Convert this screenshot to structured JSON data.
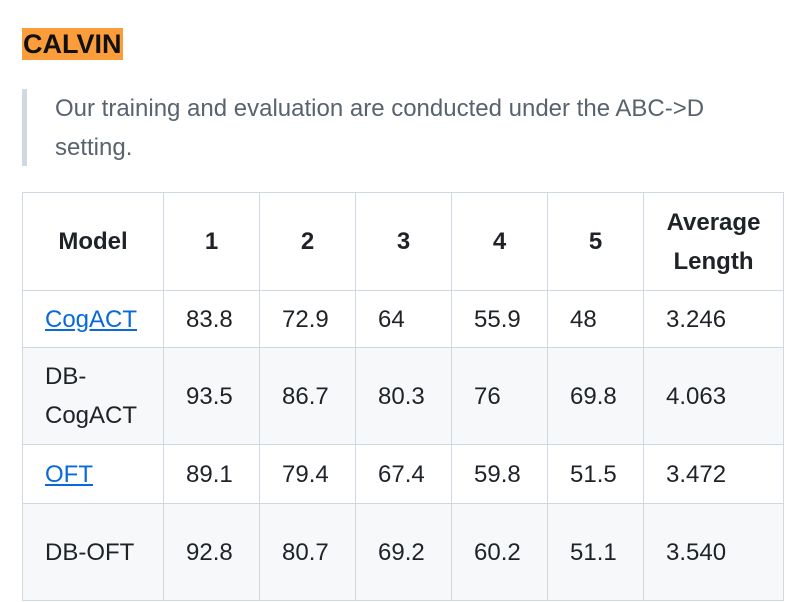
{
  "heading": "CALVIN",
  "note": "Our training and evaluation are conducted under the ABC->D setting.",
  "table": {
    "headers": [
      "Model",
      "1",
      "2",
      "3",
      "4",
      "5",
      "Average Length"
    ],
    "rows": [
      {
        "model": "CogACT",
        "link": true,
        "values": [
          "83.8",
          "72.9",
          "64",
          "55.9",
          "48",
          "3.246"
        ]
      },
      {
        "model": "DB-CogACT",
        "link": false,
        "values": [
          "93.5",
          "86.7",
          "80.3",
          "76",
          "69.8",
          "4.063"
        ]
      },
      {
        "model": "OFT",
        "link": true,
        "values": [
          "89.1",
          "79.4",
          "67.4",
          "59.8",
          "51.5",
          "3.472"
        ]
      },
      {
        "model": "DB-OFT",
        "link": false,
        "values": [
          "92.8",
          "80.7",
          "69.2",
          "60.2",
          "51.1",
          "3.540"
        ]
      }
    ]
  },
  "colors": {
    "highlight": "#fb9d3a",
    "link": "#0969da",
    "border": "#d1d9e0",
    "zebra": "#f6f8fa"
  }
}
